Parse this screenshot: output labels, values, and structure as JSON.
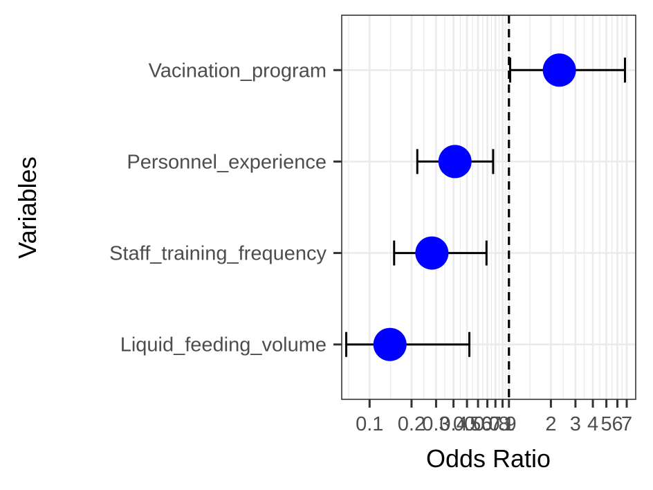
{
  "chart_data": {
    "type": "forest",
    "xlabel": "Odds Ratio",
    "ylabel": "Variables",
    "x_scale": "log10",
    "xlim": [
      0.0631,
      8.12
    ],
    "x_ticks": [
      {
        "value": 0.1,
        "label": "0.1"
      },
      {
        "value": 0.2,
        "label": "0.2"
      },
      {
        "value": 0.3,
        "label": "0.3"
      },
      {
        "value": 0.4,
        "label": "0.4"
      },
      {
        "value": 0.5,
        "label": "0.5"
      },
      {
        "value": 0.6,
        "label": "0.6"
      },
      {
        "value": 0.7,
        "label": "0.7"
      },
      {
        "value": 0.8,
        "label": "0.8"
      },
      {
        "value": 0.9,
        "label": "0.9"
      },
      {
        "value": 1,
        "label": "1"
      },
      {
        "value": 2,
        "label": "2"
      },
      {
        "value": 3,
        "label": "3"
      },
      {
        "value": 4,
        "label": "4"
      },
      {
        "value": 5,
        "label": "5"
      },
      {
        "value": 6,
        "label": "6"
      },
      {
        "value": 7,
        "label": "7"
      }
    ],
    "reference_line": 1,
    "grid": true,
    "colors": {
      "point": "#0000ff",
      "errorbar": "#000000",
      "grid": "#ebebeb",
      "panel_border": "#333333",
      "reference_line": "#000000"
    },
    "rows": [
      {
        "label": "Vacination_program",
        "or": 2.3,
        "lower": 1.02,
        "upper": 6.8
      },
      {
        "label": "Personnel_experience",
        "or": 0.41,
        "lower": 0.22,
        "upper": 0.77
      },
      {
        "label": "Staff_training_frequency",
        "or": 0.28,
        "lower": 0.15,
        "upper": 0.69
      },
      {
        "label": "Liquid_feeding_volume",
        "or": 0.14,
        "lower": 0.068,
        "upper": 0.52
      }
    ]
  }
}
